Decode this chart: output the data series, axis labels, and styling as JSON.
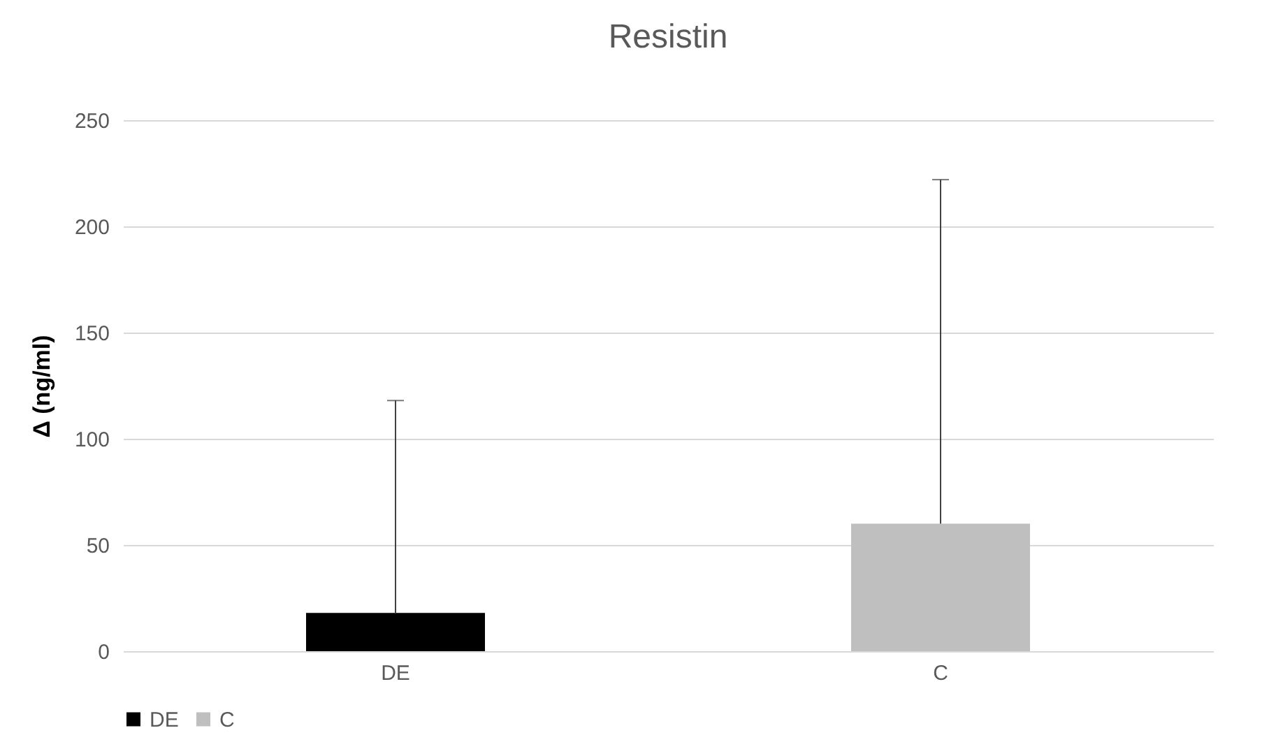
{
  "chart_data": {
    "type": "bar",
    "title": "Resistin",
    "ylabel": "Δ (ng/ml)",
    "categories": [
      "DE",
      "C"
    ],
    "series": [
      {
        "name": "DE",
        "color": "#000000",
        "values": [
          18,
          null
        ],
        "errors": [
          [
            18,
            118
          ],
          null
        ]
      },
      {
        "name": "C",
        "color": "#bfbfbf",
        "values": [
          null,
          60
        ],
        "errors": [
          null,
          [
            60,
            222
          ]
        ]
      }
    ],
    "ylim": [
      0,
      250
    ],
    "yticks": [
      0,
      50,
      100,
      150,
      200,
      250
    ],
    "grid": "y",
    "legend": "bottom"
  }
}
